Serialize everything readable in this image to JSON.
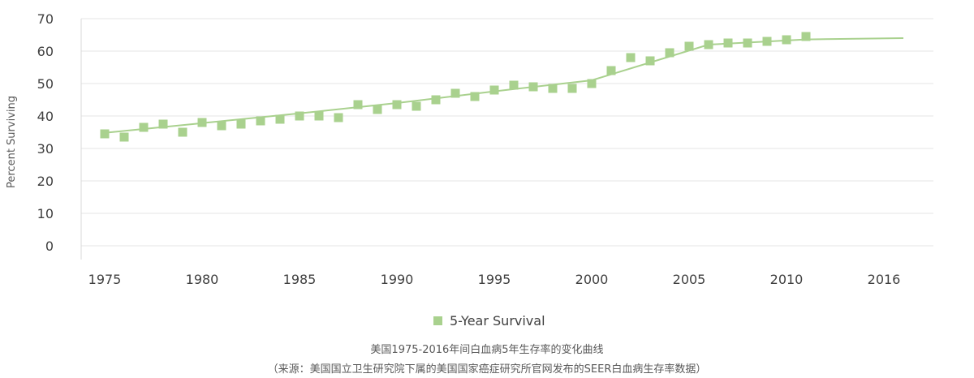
{
  "chart_data": {
    "type": "scatter",
    "ylabel": "Percent Surviving",
    "xlabel": "",
    "ylim": [
      0,
      70
    ],
    "yticks": [
      0,
      10,
      20,
      30,
      40,
      50,
      60,
      70
    ],
    "xticks": [
      1975,
      1980,
      1985,
      1990,
      1995,
      2000,
      2005,
      2010,
      2016
    ],
    "grid": "horizontal",
    "legend_position": "bottom",
    "series": [
      {
        "name": "5-Year Survival",
        "color": "#a9d18e",
        "marker": "square",
        "x": [
          1975,
          1976,
          1977,
          1978,
          1979,
          1980,
          1981,
          1982,
          1983,
          1984,
          1985,
          1986,
          1987,
          1988,
          1989,
          1990,
          1991,
          1992,
          1993,
          1994,
          1995,
          1996,
          1997,
          1998,
          1999,
          2000,
          2001,
          2002,
          2003,
          2004,
          2005,
          2006,
          2007,
          2008,
          2009,
          2010,
          2011
        ],
        "y": [
          34.5,
          33.5,
          36.5,
          37.5,
          35,
          38,
          37,
          37.5,
          38.5,
          39,
          40,
          40,
          39.5,
          43.5,
          42,
          43.5,
          43,
          45,
          47,
          46,
          48,
          49.5,
          49,
          48.5,
          48.5,
          50,
          54,
          58,
          57,
          59.5,
          61.5,
          62,
          62.5,
          62.5,
          63,
          63.5,
          64.5
        ]
      }
    ],
    "trendline": {
      "color": "#a9d18e",
      "x": [
        1975,
        1985,
        1990,
        1995,
        2000,
        2006,
        2011,
        2016
      ],
      "y": [
        34.8,
        40.8,
        44.0,
        47.6,
        51.0,
        62.0,
        63.6,
        64.0
      ]
    }
  },
  "legend": {
    "label": "5-Year Survival"
  },
  "caption": {
    "line1": "美国1975-2016年间白血病5年生存率的变化曲线",
    "line2": "（来源：美国国立卫生研究院下属的美国国家癌症研究所官网发布的SEER白血病生存率数据）"
  }
}
